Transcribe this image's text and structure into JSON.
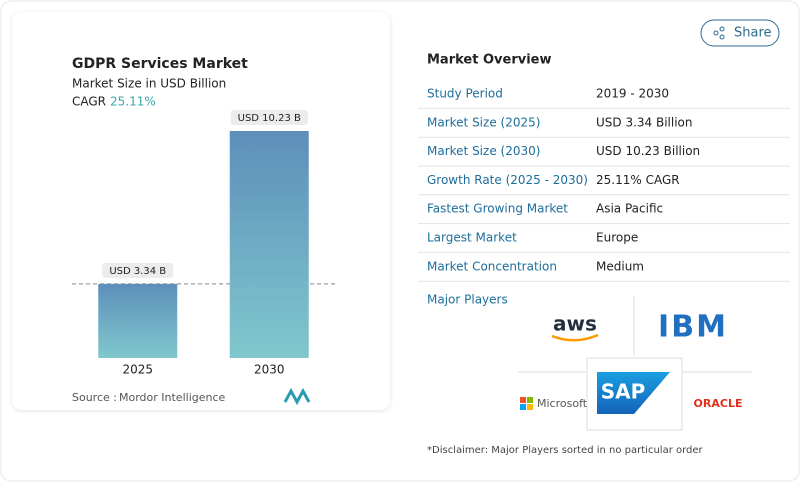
{
  "header": {
    "share": "Share"
  },
  "chart_data": {
    "type": "bar",
    "title": "GDPR Services Market",
    "subtitle": "Market Size in USD Billion",
    "cagr_label": "CAGR",
    "cagr": "25.11%",
    "categories": [
      "2025",
      "2030"
    ],
    "values": [
      3.34,
      10.23
    ],
    "value_labels": [
      "USD 3.34 B",
      "USD 10.23 B"
    ],
    "source_label": "Source :",
    "source": "Mordor Intelligence"
  },
  "overview": {
    "title": "Market Overview",
    "rows": [
      [
        "Study Period",
        "2019 - 2030"
      ],
      [
        "Market Size (2025)",
        "USD 3.34 Billion"
      ],
      [
        "Market Size (2030)",
        "USD 10.23 Billion"
      ],
      [
        "Growth Rate (2025 - 2030)",
        "25.11% CAGR"
      ],
      [
        "Fastest Growing Market",
        "Asia Pacific"
      ],
      [
        "Largest Market",
        "Europe"
      ],
      [
        "Market Concentration",
        "Medium"
      ]
    ]
  },
  "major_players": {
    "title": "Major Players",
    "logos": [
      "aws",
      "IBM",
      "Microsoft",
      "SAP",
      "ORACLE"
    ]
  },
  "disclaimer": "*Disclaimer: Major Players sorted in no particular order"
}
